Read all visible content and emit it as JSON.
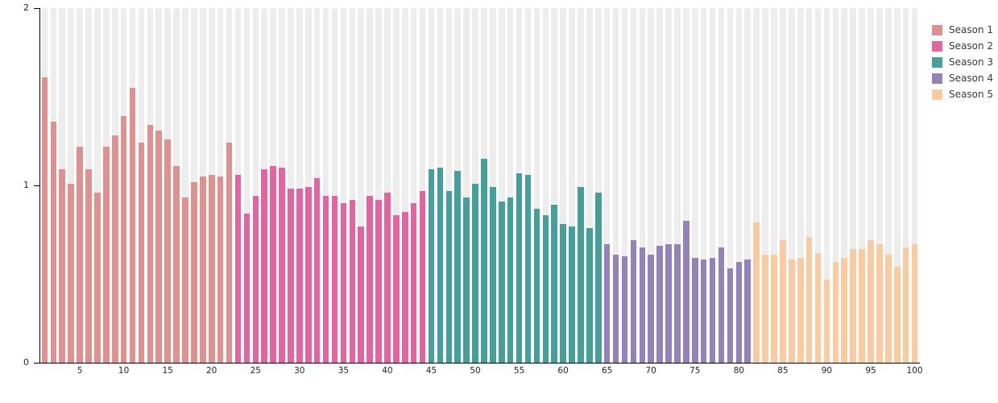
{
  "chart_data": {
    "type": "bar",
    "ylim": [
      0,
      2
    ],
    "yticks": [
      0,
      1,
      2
    ],
    "xticks": [
      5,
      10,
      15,
      20,
      25,
      30,
      35,
      40,
      45,
      50,
      55,
      60,
      65,
      70,
      75,
      80,
      85,
      90,
      95,
      100
    ],
    "x_count": 100,
    "grid": false,
    "legend_position": "top-right-outside",
    "background_column_color": "#EDEDED",
    "background_column_value": 2,
    "axis_color": "#000000",
    "tick_label_color": "#262626",
    "series": [
      {
        "name": "Season 1",
        "color": "#DE918E",
        "values": [
          1.61,
          1.36,
          1.09,
          1.01,
          1.22,
          1.09,
          0.96,
          1.22,
          1.28,
          1.39,
          1.55,
          1.24,
          1.34,
          1.31,
          1.26,
          1.11,
          0.93,
          1.02,
          1.05,
          1.06,
          1.05,
          1.24
        ]
      },
      {
        "name": "Season 2",
        "color": "#E264A0",
        "values": [
          1.06,
          0.84,
          0.94,
          1.09,
          1.11,
          1.1,
          0.98,
          0.98,
          0.99,
          1.04,
          0.94,
          0.94,
          0.9,
          0.92,
          0.77,
          0.94,
          0.92,
          0.96,
          0.83,
          0.85,
          0.9,
          0.97
        ]
      },
      {
        "name": "Season 3",
        "color": "#45A09B",
        "values": [
          1.09,
          1.1,
          0.97,
          1.08,
          0.93,
          1.01,
          1.15,
          0.99,
          0.91,
          0.93,
          1.07,
          1.06,
          0.87,
          0.83,
          0.89,
          0.78,
          0.77,
          0.99,
          0.76,
          0.96
        ]
      },
      {
        "name": "Season 4",
        "color": "#9483B8",
        "values": [
          0.67,
          0.61,
          0.6,
          0.69,
          0.65,
          0.61,
          0.66,
          0.67,
          0.67,
          0.8,
          0.59,
          0.58,
          0.59,
          0.65,
          0.53,
          0.57,
          0.58
        ]
      },
      {
        "name": "Season 5",
        "color": "#FACBA0",
        "values": [
          0.79,
          0.61,
          0.61,
          0.69,
          0.58,
          0.59,
          0.71,
          0.62,
          0.47,
          0.57,
          0.59,
          0.64,
          0.64,
          0.69,
          0.67,
          0.61,
          0.54,
          0.65,
          0.67
        ]
      }
    ]
  }
}
